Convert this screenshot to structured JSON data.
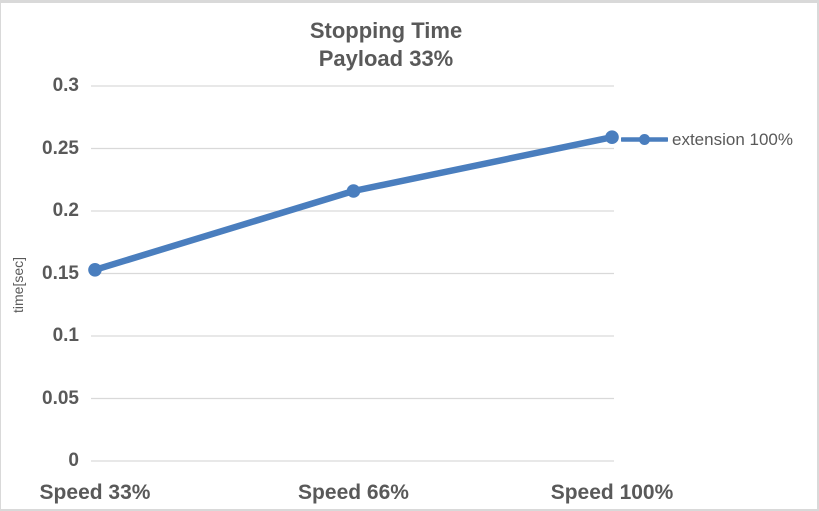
{
  "chart": {
    "title": "Stopping Time",
    "subtitle": "Payload 33%",
    "ylabel": "time[sec]",
    "legend_label": "extension 100%",
    "colors": {
      "series": "#4A7EBE",
      "text": "#595959",
      "gridline": "#D9D9D9",
      "frame_border": "#D9D9D9"
    }
  },
  "chart_data": {
    "type": "line",
    "title": "Stopping Time",
    "subtitle": "Payload 33%",
    "categories": [
      "Speed 33%",
      "Speed 66%",
      "Speed 100%"
    ],
    "series": [
      {
        "name": "extension 100%",
        "values": [
          0.153,
          0.216,
          0.259
        ]
      }
    ],
    "xlabel": "",
    "ylabel": "time[sec]",
    "ylim": [
      0,
      0.3
    ],
    "yticks": [
      0,
      0.05,
      0.1,
      0.15,
      0.2,
      0.25,
      0.3
    ],
    "ytick_labels": [
      "0",
      "0.05",
      "0.1",
      "0.15",
      "0.2",
      "0.25",
      "0.3"
    ],
    "grid": true,
    "legend_position": "right",
    "marker": "circle"
  }
}
